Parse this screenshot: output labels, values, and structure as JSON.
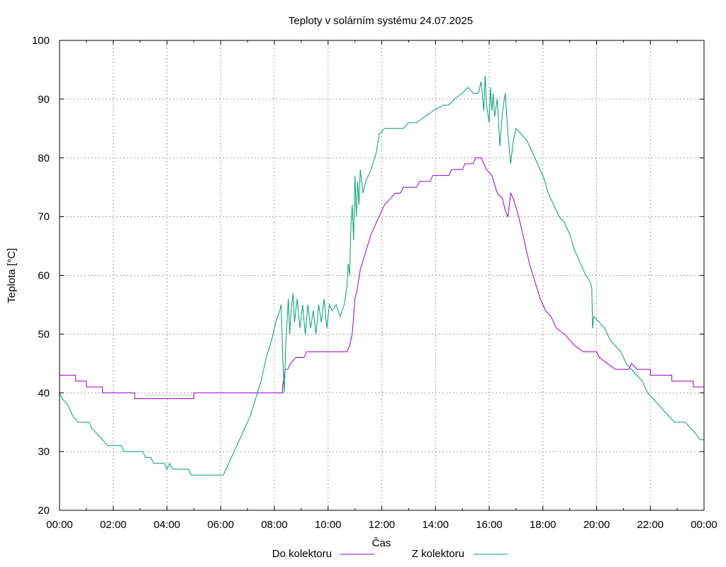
{
  "chart_data": {
    "type": "line",
    "title": "Teploty v solárním systému 24.07.2025",
    "xlabel": "Čas",
    "ylabel": "Teplota [°C]",
    "x_unit": "hours",
    "xlim": [
      0,
      24
    ],
    "ylim": [
      20,
      100
    ],
    "grid": true,
    "legend_position": "bottom",
    "x_ticks": [
      {
        "v": 0,
        "label": "00:00"
      },
      {
        "v": 2,
        "label": "02:00"
      },
      {
        "v": 4,
        "label": "04:00"
      },
      {
        "v": 6,
        "label": "06:00"
      },
      {
        "v": 8,
        "label": "08:00"
      },
      {
        "v": 10,
        "label": "10:00"
      },
      {
        "v": 12,
        "label": "12:00"
      },
      {
        "v": 14,
        "label": "14:00"
      },
      {
        "v": 16,
        "label": "16:00"
      },
      {
        "v": 18,
        "label": "18:00"
      },
      {
        "v": 20,
        "label": "20:00"
      },
      {
        "v": 22,
        "label": "22:00"
      },
      {
        "v": 24,
        "label": "00:00"
      }
    ],
    "y_ticks": [
      {
        "v": 20,
        "label": "20"
      },
      {
        "v": 30,
        "label": "30"
      },
      {
        "v": 40,
        "label": "40"
      },
      {
        "v": 50,
        "label": "50"
      },
      {
        "v": 60,
        "label": "60"
      },
      {
        "v": 70,
        "label": "70"
      },
      {
        "v": 80,
        "label": "80"
      },
      {
        "v": 90,
        "label": "90"
      },
      {
        "v": 100,
        "label": "100"
      }
    ],
    "series": [
      {
        "name": "Do kolektoru",
        "color": "#9400d3",
        "points": [
          [
            0.0,
            43
          ],
          [
            0.6,
            43
          ],
          [
            0.6,
            42
          ],
          [
            1.0,
            42
          ],
          [
            1.0,
            41
          ],
          [
            1.6,
            41
          ],
          [
            1.6,
            40
          ],
          [
            2.8,
            40
          ],
          [
            2.8,
            39
          ],
          [
            5.0,
            39
          ],
          [
            5.0,
            40
          ],
          [
            8.3,
            40
          ],
          [
            8.3,
            41
          ],
          [
            8.4,
            44
          ],
          [
            8.5,
            44
          ],
          [
            8.6,
            45
          ],
          [
            8.8,
            46
          ],
          [
            9.1,
            46
          ],
          [
            9.2,
            47
          ],
          [
            10.7,
            47
          ],
          [
            10.8,
            48
          ],
          [
            10.9,
            50
          ],
          [
            11.0,
            56
          ],
          [
            11.1,
            58
          ],
          [
            11.2,
            61
          ],
          [
            11.4,
            64
          ],
          [
            11.6,
            67
          ],
          [
            11.9,
            70
          ],
          [
            12.1,
            72
          ],
          [
            12.3,
            73
          ],
          [
            12.5,
            74
          ],
          [
            12.7,
            74
          ],
          [
            12.8,
            75
          ],
          [
            13.3,
            75
          ],
          [
            13.4,
            76
          ],
          [
            13.8,
            76
          ],
          [
            13.9,
            77
          ],
          [
            14.5,
            77
          ],
          [
            14.6,
            78
          ],
          [
            15.0,
            78
          ],
          [
            15.1,
            79
          ],
          [
            15.4,
            79
          ],
          [
            15.5,
            80
          ],
          [
            15.7,
            80
          ],
          [
            15.8,
            79
          ],
          [
            15.9,
            78
          ],
          [
            16.1,
            77
          ],
          [
            16.3,
            74
          ],
          [
            16.5,
            73
          ],
          [
            16.6,
            71
          ],
          [
            16.7,
            70
          ],
          [
            16.8,
            74
          ],
          [
            16.9,
            73
          ],
          [
            17.1,
            70
          ],
          [
            17.3,
            66
          ],
          [
            17.5,
            62
          ],
          [
            17.7,
            59
          ],
          [
            17.9,
            56
          ],
          [
            18.1,
            54
          ],
          [
            18.3,
            53
          ],
          [
            18.5,
            51
          ],
          [
            18.8,
            50
          ],
          [
            19.0,
            49
          ],
          [
            19.2,
            48
          ],
          [
            19.5,
            47
          ],
          [
            20.0,
            47
          ],
          [
            20.1,
            46
          ],
          [
            20.4,
            45
          ],
          [
            20.7,
            44
          ],
          [
            21.2,
            44
          ],
          [
            21.3,
            45
          ],
          [
            21.5,
            44
          ],
          [
            22.0,
            44
          ],
          [
            22.0,
            43
          ],
          [
            22.8,
            43
          ],
          [
            22.8,
            42
          ],
          [
            23.6,
            42
          ],
          [
            23.6,
            41
          ],
          [
            24.0,
            41
          ]
        ]
      },
      {
        "name": "Z kolektoru",
        "color": "#009e73",
        "points": [
          [
            0.0,
            40
          ],
          [
            0.1,
            39
          ],
          [
            0.3,
            38
          ],
          [
            0.5,
            36
          ],
          [
            0.7,
            35
          ],
          [
            1.1,
            35
          ],
          [
            1.2,
            34
          ],
          [
            1.4,
            33
          ],
          [
            1.6,
            32
          ],
          [
            1.8,
            31
          ],
          [
            2.3,
            31
          ],
          [
            2.4,
            30
          ],
          [
            3.1,
            30
          ],
          [
            3.2,
            29
          ],
          [
            3.4,
            29
          ],
          [
            3.5,
            28
          ],
          [
            3.9,
            28
          ],
          [
            4.0,
            27
          ],
          [
            4.1,
            28
          ],
          [
            4.2,
            27
          ],
          [
            4.8,
            27
          ],
          [
            4.9,
            26
          ],
          [
            6.1,
            26
          ],
          [
            6.2,
            27
          ],
          [
            6.3,
            28
          ],
          [
            6.5,
            30
          ],
          [
            6.7,
            32
          ],
          [
            6.9,
            34
          ],
          [
            7.1,
            36
          ],
          [
            7.3,
            39
          ],
          [
            7.5,
            42
          ],
          [
            7.7,
            46
          ],
          [
            7.9,
            49
          ],
          [
            8.05,
            52
          ],
          [
            8.2,
            54
          ],
          [
            8.25,
            55
          ],
          [
            8.32,
            45
          ],
          [
            8.37,
            40
          ],
          [
            8.42,
            48
          ],
          [
            8.47,
            52
          ],
          [
            8.52,
            56
          ],
          [
            8.57,
            50
          ],
          [
            8.62,
            54
          ],
          [
            8.7,
            57
          ],
          [
            8.75,
            52
          ],
          [
            8.85,
            56
          ],
          [
            8.95,
            51
          ],
          [
            9.05,
            55
          ],
          [
            9.15,
            50
          ],
          [
            9.25,
            55
          ],
          [
            9.35,
            51
          ],
          [
            9.45,
            54
          ],
          [
            9.55,
            50
          ],
          [
            9.65,
            55
          ],
          [
            9.75,
            52
          ],
          [
            9.85,
            56
          ],
          [
            9.95,
            51
          ],
          [
            10.05,
            55
          ],
          [
            10.15,
            54
          ],
          [
            10.3,
            55
          ],
          [
            10.45,
            53
          ],
          [
            10.6,
            55
          ],
          [
            10.7,
            58
          ],
          [
            10.75,
            62
          ],
          [
            10.8,
            60
          ],
          [
            10.85,
            68
          ],
          [
            10.9,
            72
          ],
          [
            10.95,
            66
          ],
          [
            11.0,
            77
          ],
          [
            11.05,
            70
          ],
          [
            11.1,
            76
          ],
          [
            11.15,
            72
          ],
          [
            11.2,
            78
          ],
          [
            11.3,
            74
          ],
          [
            11.4,
            76
          ],
          [
            11.6,
            78
          ],
          [
            11.8,
            81
          ],
          [
            11.9,
            84
          ],
          [
            12.1,
            85
          ],
          [
            12.8,
            85
          ],
          [
            13.0,
            86
          ],
          [
            13.3,
            86
          ],
          [
            13.6,
            87
          ],
          [
            13.9,
            88
          ],
          [
            14.3,
            89
          ],
          [
            14.5,
            89
          ],
          [
            14.7,
            90
          ],
          [
            15.0,
            91
          ],
          [
            15.2,
            92
          ],
          [
            15.4,
            91
          ],
          [
            15.6,
            91
          ],
          [
            15.7,
            93
          ],
          [
            15.8,
            88
          ],
          [
            15.85,
            94
          ],
          [
            15.9,
            89
          ],
          [
            16.0,
            86
          ],
          [
            16.05,
            92
          ],
          [
            16.1,
            88
          ],
          [
            16.15,
            91
          ],
          [
            16.2,
            87
          ],
          [
            16.3,
            90
          ],
          [
            16.4,
            82
          ],
          [
            16.5,
            88
          ],
          [
            16.6,
            91
          ],
          [
            16.7,
            84
          ],
          [
            16.8,
            79
          ],
          [
            16.9,
            83
          ],
          [
            17.0,
            85
          ],
          [
            17.2,
            84
          ],
          [
            17.4,
            83
          ],
          [
            17.6,
            81
          ],
          [
            17.8,
            79
          ],
          [
            18.0,
            77
          ],
          [
            18.2,
            74
          ],
          [
            18.4,
            72
          ],
          [
            18.6,
            70
          ],
          [
            18.8,
            69
          ],
          [
            19.0,
            67
          ],
          [
            19.2,
            64
          ],
          [
            19.4,
            62
          ],
          [
            19.6,
            60
          ],
          [
            19.75,
            59
          ],
          [
            19.82,
            58
          ],
          [
            19.85,
            51
          ],
          [
            19.9,
            53
          ],
          [
            20.1,
            52
          ],
          [
            20.3,
            51
          ],
          [
            20.5,
            49
          ],
          [
            20.7,
            48
          ],
          [
            20.9,
            47
          ],
          [
            21.1,
            45
          ],
          [
            21.3,
            44
          ],
          [
            21.5,
            43
          ],
          [
            21.7,
            42
          ],
          [
            21.9,
            40
          ],
          [
            22.1,
            39
          ],
          [
            22.3,
            38
          ],
          [
            22.5,
            37
          ],
          [
            22.7,
            36
          ],
          [
            22.9,
            35
          ],
          [
            23.3,
            35
          ],
          [
            23.5,
            34
          ],
          [
            23.7,
            33
          ],
          [
            23.85,
            32
          ],
          [
            24.0,
            32
          ]
        ]
      }
    ]
  }
}
